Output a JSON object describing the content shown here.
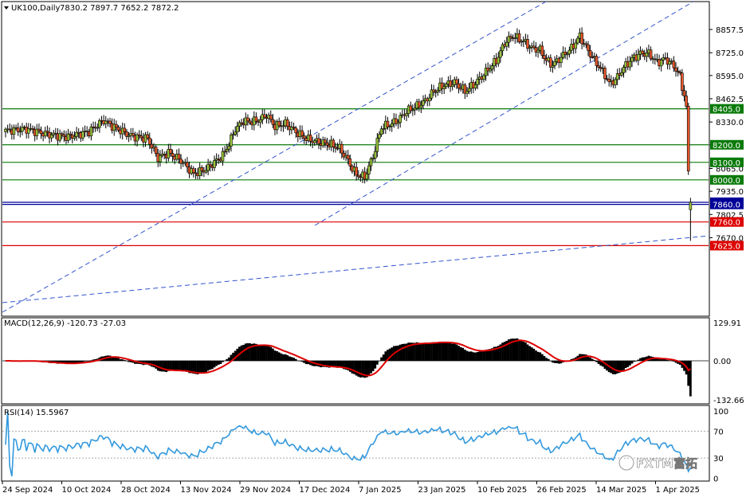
{
  "chart_data": {
    "type": "candlestick",
    "symbol": "UK100,Daily",
    "ohlc_header": "7830.2 7897.7 7652.2 7872.2",
    "colors": {
      "up_body": "#9bc53d",
      "down_body": "#e8572a",
      "wick": "#000000",
      "support_line": "#0a7a0a",
      "resistance_red": "#dd0000",
      "current_price": "#000099",
      "channel": "#3355cc",
      "macd_signal": "#dd0000",
      "rsi_line": "#3399dd",
      "label_green_bg": "#0a7a0a",
      "label_red_bg": "#dd0000",
      "label_blue_bg": "#000099",
      "grid": "#aaaaaa"
    },
    "price_axis": {
      "ticks": [
        "8857.5",
        "8725.0",
        "8595.0",
        "8462.5",
        "8330.0",
        "8200.0",
        "8065.0",
        "7935.0",
        "7802.5",
        "7670.0"
      ],
      "ylim": [
        7625,
        8980
      ]
    },
    "levels": [
      {
        "value": 8405.0,
        "label": "8405.0",
        "style": "green"
      },
      {
        "value": 8200.0,
        "label": "8200.0",
        "style": "green"
      },
      {
        "value": 8100.0,
        "label": "8100.0",
        "style": "green"
      },
      {
        "value": 8000.0,
        "label": "8000.0",
        "style": "green"
      },
      {
        "value": 7872.2,
        "label": "7872.2",
        "style": "blue"
      },
      {
        "value": 7860.0,
        "label": "7860.0",
        "style": "blue"
      },
      {
        "value": 7760.0,
        "label": "7760.0",
        "style": "red"
      },
      {
        "value": 7625.0,
        "label": "7625.0",
        "style": "red"
      }
    ],
    "x_axis_labels": [
      "24 Sep 2024",
      "10 Oct 2024",
      "28 Oct 2024",
      "13 Nov 2024",
      "29 Nov 2024",
      "17 Dec 2024",
      "7 Jan 2025",
      "23 Jan 2025",
      "10 Feb 2025",
      "26 Feb 2025",
      "14 Mar 2025",
      "1 Apr 2025"
    ],
    "close_path": [
      [
        0,
        8280
      ],
      [
        10,
        8290
      ],
      [
        20,
        8260
      ],
      [
        30,
        8245
      ],
      [
        40,
        8275
      ],
      [
        47,
        8340
      ],
      [
        52,
        8300
      ],
      [
        60,
        8250
      ],
      [
        68,
        8235
      ],
      [
        73,
        8125
      ],
      [
        78,
        8155
      ],
      [
        84,
        8110
      ],
      [
        90,
        8035
      ],
      [
        96,
        8060
      ],
      [
        104,
        8140
      ],
      [
        107,
        8205
      ],
      [
        110,
        8290
      ],
      [
        114,
        8335
      ],
      [
        118,
        8330
      ],
      [
        122,
        8345
      ],
      [
        125,
        8370
      ],
      [
        129,
        8305
      ],
      [
        134,
        8320
      ],
      [
        140,
        8265
      ],
      [
        145,
        8230
      ],
      [
        150,
        8215
      ],
      [
        156,
        8200
      ],
      [
        160,
        8180
      ],
      [
        164,
        8110
      ],
      [
        166,
        8065
      ],
      [
        168,
        8030
      ],
      [
        172,
        8015
      ],
      [
        176,
        8135
      ],
      [
        180,
        8300
      ],
      [
        184,
        8315
      ],
      [
        188,
        8340
      ],
      [
        192,
        8390
      ],
      [
        197,
        8420
      ],
      [
        201,
        8450
      ],
      [
        205,
        8505
      ],
      [
        210,
        8540
      ],
      [
        215,
        8555
      ],
      [
        220,
        8505
      ],
      [
        225,
        8550
      ],
      [
        230,
        8615
      ],
      [
        235,
        8680
      ],
      [
        239,
        8780
      ],
      [
        243,
        8820
      ],
      [
        248,
        8790
      ],
      [
        252,
        8750
      ],
      [
        256,
        8740
      ],
      [
        259,
        8680
      ],
      [
        262,
        8655
      ],
      [
        266,
        8700
      ],
      [
        271,
        8750
      ],
      [
        275,
        8820
      ],
      [
        279,
        8735
      ],
      [
        283,
        8665
      ],
      [
        287,
        8600
      ],
      [
        289,
        8550
      ],
      [
        292,
        8570
      ],
      [
        296,
        8640
      ],
      [
        300,
        8690
      ],
      [
        304,
        8720
      ],
      [
        308,
        8720
      ],
      [
        312,
        8670
      ],
      [
        316,
        8690
      ],
      [
        320,
        8650
      ],
      [
        323,
        8590
      ],
      [
        326,
        8420
      ],
      [
        327,
        8050
      ],
      [
        328,
        7880
      ]
    ],
    "macd": {
      "label": "MACD(12,26,9) -120.73 -27.03",
      "ticks": [
        "129.91",
        "0.00",
        "-132.66"
      ],
      "ylim": [
        -132.66,
        129.91
      ]
    },
    "rsi": {
      "label": "RSI(14) 15.5967",
      "ticks": [
        "100",
        "70",
        "30",
        "0"
      ],
      "ylim": [
        0,
        100
      ],
      "levels": [
        70,
        30
      ]
    },
    "watermark": "FXTM富拓"
  }
}
